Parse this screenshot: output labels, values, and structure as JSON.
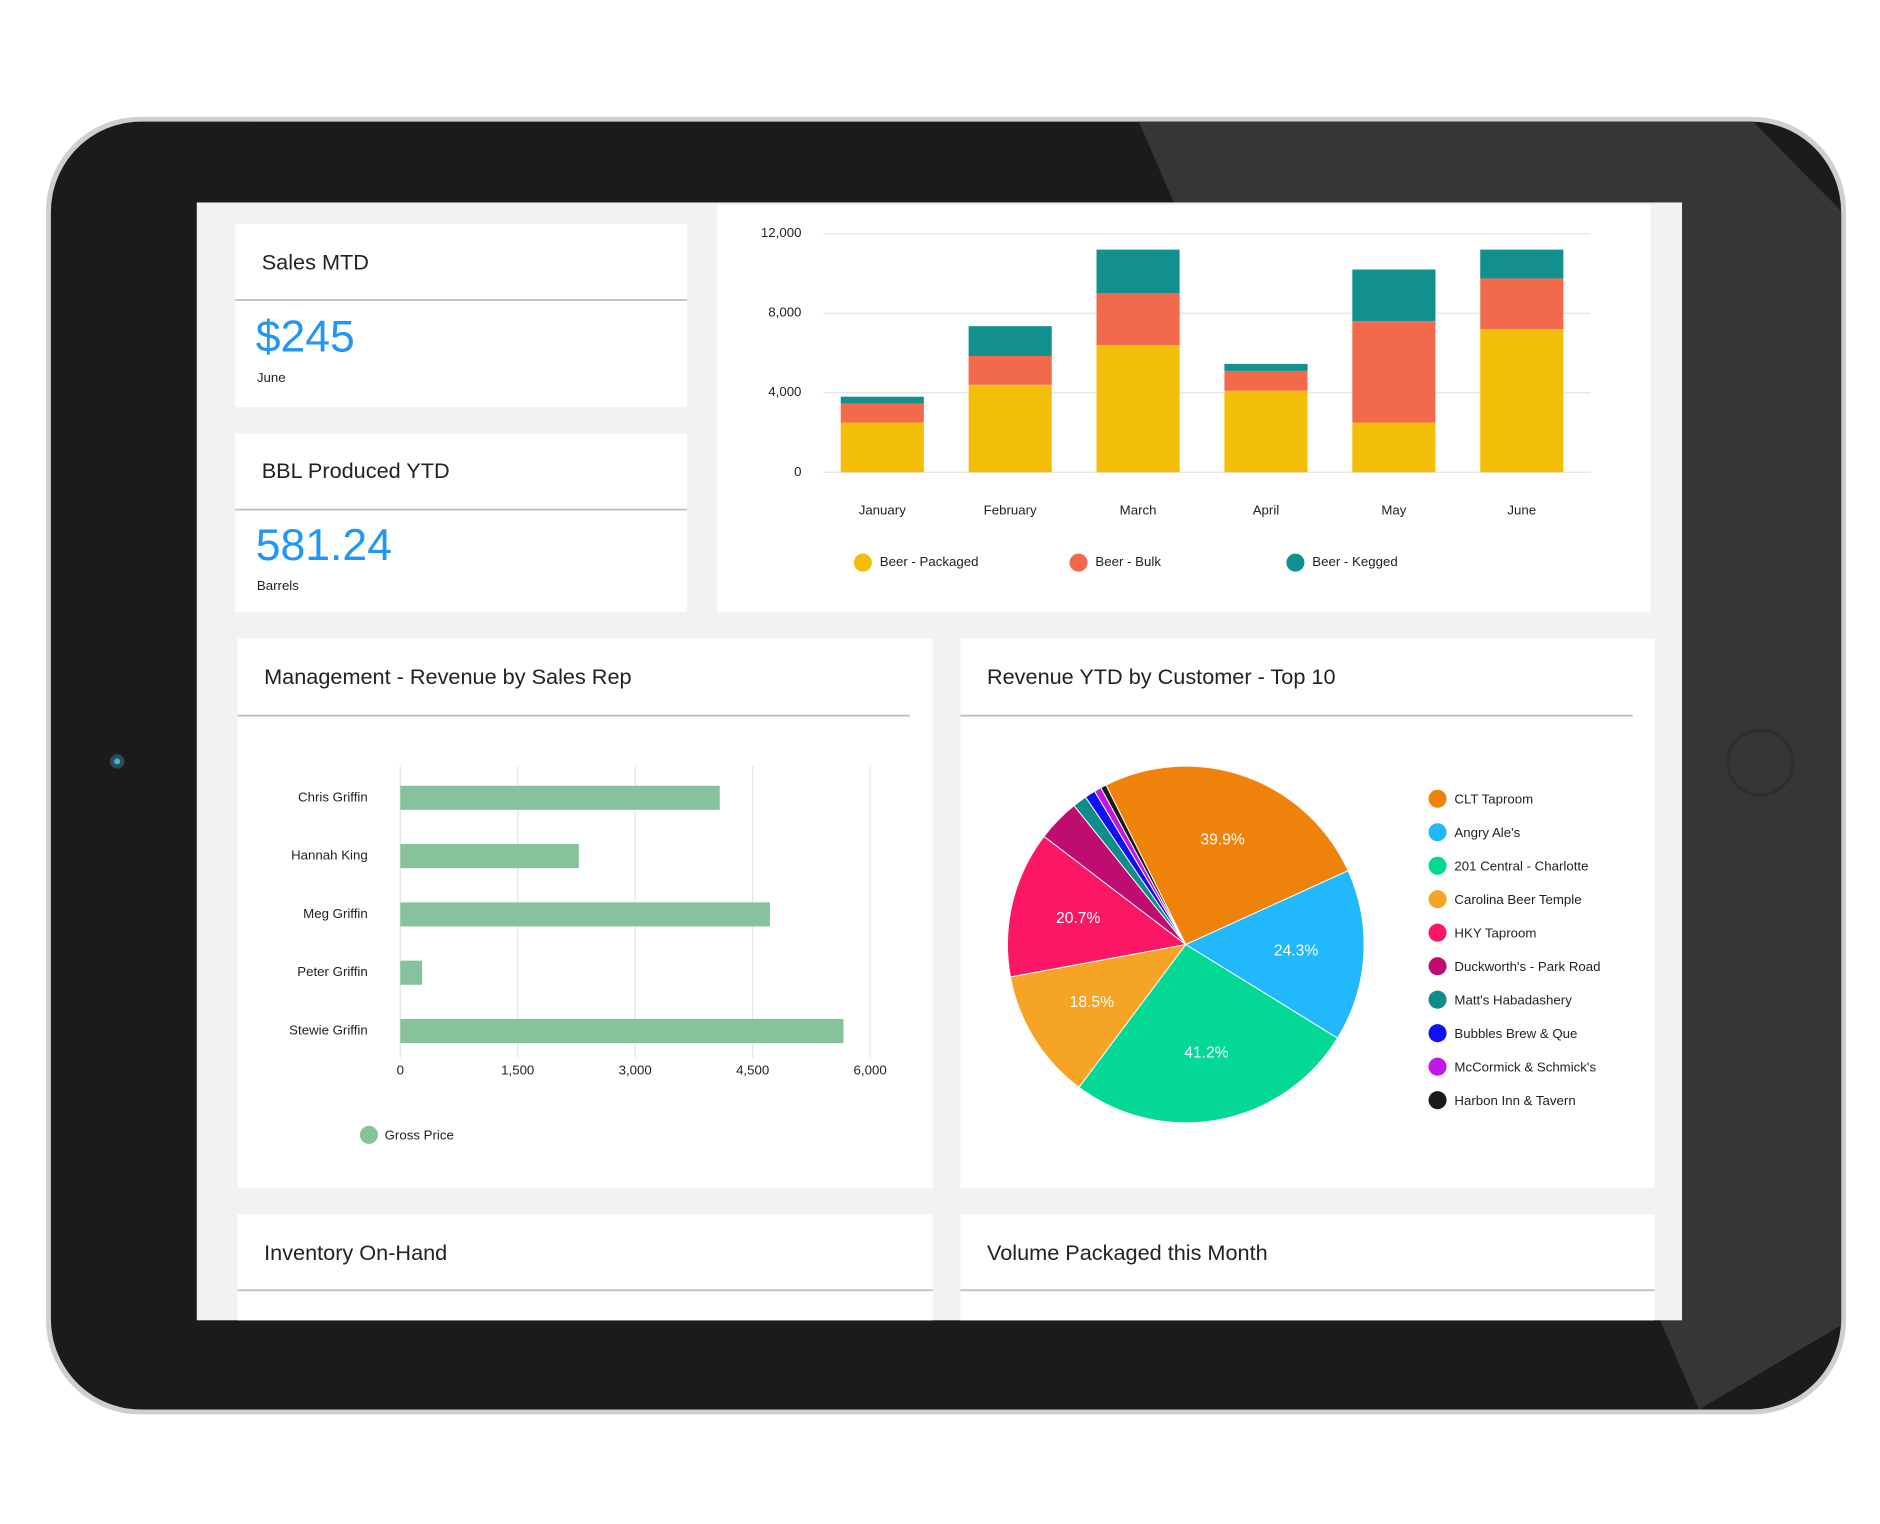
{
  "kpis": [
    {
      "title": "Sales MTD",
      "value": "$245",
      "unit": "June"
    },
    {
      "title": "BBL Produced YTD",
      "value": "581.24",
      "unit": "Barrels"
    }
  ],
  "chart_data": [
    {
      "type": "stacked_bar",
      "categories": [
        "January",
        "February",
        "March",
        "April",
        "May",
        "June"
      ],
      "series": [
        {
          "name": "Beer - Packaged",
          "color": "#f2be0a",
          "values": [
            2500,
            4400,
            6400,
            4100,
            2500,
            7200
          ]
        },
        {
          "name": "Beer - Bulk",
          "color": "#f26a4b",
          "values": [
            950,
            1450,
            2600,
            1000,
            5100,
            2550
          ]
        },
        {
          "name": "Beer - Kegged",
          "color": "#11908f",
          "values": [
            350,
            1500,
            2200,
            350,
            2600,
            1450
          ]
        }
      ],
      "ylim": [
        0,
        12000
      ],
      "yticks": [
        0,
        {
          "value": 4000,
          "label": "4,000"
        },
        {
          "value": 8000,
          "label": "8,000"
        },
        {
          "value": 12000,
          "label": "12,000"
        }
      ],
      "grid": true,
      "legend": "bottom"
    },
    {
      "type": "hbar",
      "title": "Management - Revenue by Sales Rep",
      "categories": [
        "Chris Griffin",
        "Hannah King",
        "Meg Griffin",
        "Peter Griffin",
        "Stewie Griffin"
      ],
      "series": [
        {
          "name": "Gross Price",
          "color": "#86c29b",
          "values": [
            4080,
            2280,
            4720,
            280,
            5660
          ]
        }
      ],
      "xlim": [
        0,
        6000
      ],
      "xticks": [
        0,
        {
          "value": 1500,
          "label": "1,500"
        },
        {
          "value": 3000,
          "label": "3,000"
        },
        {
          "value": 4500,
          "label": "4,500"
        },
        {
          "value": 6000,
          "label": "6,000"
        }
      ],
      "grid": true,
      "legend": "bottom"
    },
    {
      "type": "pie",
      "title": "Revenue YTD by Customer - Top 10",
      "categories": [
        "CLT Taproom",
        "Angry Ale's",
        "201 Central - Charlotte",
        "Carolina Beer Temple",
        "HKY Taproom",
        "Duckworth's - Park Road",
        "Matt's Habadashery",
        "Bubbles Brew & Que",
        "McCormick & Schmick's",
        "Harbon Inn & Tavern"
      ],
      "values": [
        39.9,
        24.3,
        41.2,
        18.5,
        20.7,
        6,
        2,
        1.5,
        1,
        0.8
      ],
      "value_labels": [
        "39.9%",
        "24.3%",
        "41.2%",
        "18.5%",
        "20.7%",
        null,
        null,
        null,
        null,
        null
      ],
      "colors": [
        "#ef820a",
        "#22b9fc",
        "#03d995",
        "#f5a425",
        "#fc1766",
        "#bf0c73",
        "#0f8c8c",
        "#1010f5",
        "#c316e8",
        "#1a1a1a"
      ],
      "legend": "right"
    }
  ],
  "panels": [
    {
      "title": "Inventory On-Hand"
    },
    {
      "title": "Volume Packaged this Month"
    }
  ]
}
